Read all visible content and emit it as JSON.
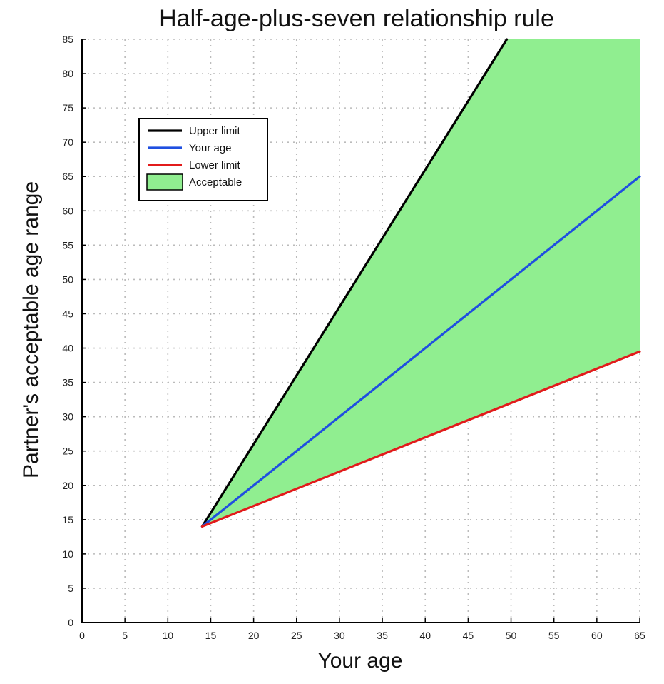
{
  "chart_data": {
    "type": "line",
    "title": "Half-age-plus-seven relationship rule",
    "xlabel": "Your age",
    "ylabel": "Partner's acceptable age range",
    "xlim": [
      0,
      65
    ],
    "ylim": [
      0,
      85
    ],
    "xticks": [
      0,
      5,
      10,
      15,
      20,
      25,
      30,
      35,
      40,
      45,
      50,
      55,
      60,
      65
    ],
    "yticks": [
      0,
      5,
      10,
      15,
      20,
      25,
      30,
      35,
      40,
      45,
      50,
      55,
      60,
      65,
      70,
      75,
      80,
      85
    ],
    "grid": true,
    "legend_position": "upper-left",
    "series": [
      {
        "name": "Upper limit",
        "color": "#000000",
        "x": [
          14,
          49.5
        ],
        "y": [
          14,
          85
        ]
      },
      {
        "name": "Your age",
        "color": "#1f4fe0",
        "x": [
          14,
          65
        ],
        "y": [
          14,
          65
        ]
      },
      {
        "name": "Lower limit",
        "color": "#e21b1b",
        "x": [
          14,
          65
        ],
        "y": [
          14,
          39.5
        ]
      }
    ],
    "area": {
      "name": "Acceptable",
      "color": "#90ee90",
      "x": [
        14,
        49.5,
        65,
        65,
        14
      ],
      "y": [
        14,
        85,
        85,
        39.5,
        14
      ]
    }
  }
}
